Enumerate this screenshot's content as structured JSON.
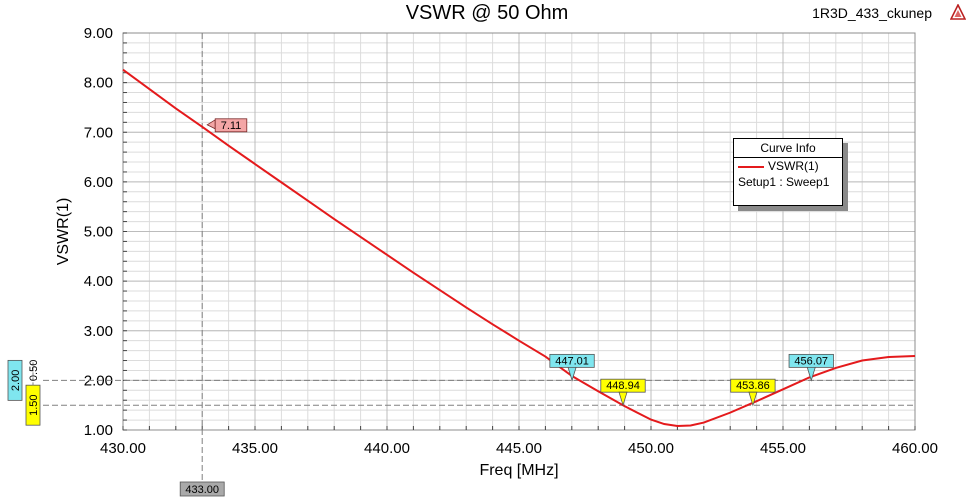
{
  "header": {
    "title": "VSWR @ 50 Ohm",
    "project": "1R3D_433_ckunep",
    "logo_icon": "ansys-logo-icon"
  },
  "legend": {
    "title": "Curve Info",
    "entry": "VSWR(1)",
    "sub": "Setup1 : Sweep1",
    "color": "#e41a1c"
  },
  "chart_data": {
    "type": "line",
    "title": "VSWR @ 50 Ohm",
    "xlabel": "Freq [MHz]",
    "ylabel": "VSWR(1)",
    "xlim": [
      430,
      460
    ],
    "ylim": [
      1,
      9
    ],
    "x_ticks": [
      "430.00",
      "435.00",
      "440.00",
      "445.00",
      "450.00",
      "455.00",
      "460.00"
    ],
    "y_ticks": [
      "1.00",
      "2.00",
      "3.00",
      "4.00",
      "5.00",
      "6.00",
      "7.00",
      "8.00",
      "9.00"
    ],
    "grid": true,
    "series": [
      {
        "name": "VSWR(1)",
        "color": "#e41a1c",
        "x": [
          430,
          431,
          432,
          433,
          434,
          435,
          436,
          437,
          438,
          439,
          440,
          441,
          442,
          443,
          444,
          445,
          446,
          447,
          448,
          449,
          450,
          450.5,
          451,
          451.5,
          452,
          453,
          454,
          455,
          456,
          457,
          458,
          459,
          460
        ],
        "y": [
          8.26,
          7.87,
          7.48,
          7.11,
          6.73,
          6.36,
          5.99,
          5.62,
          5.25,
          4.89,
          4.53,
          4.17,
          3.82,
          3.47,
          3.13,
          2.8,
          2.48,
          2.09,
          1.78,
          1.48,
          1.21,
          1.12,
          1.08,
          1.09,
          1.15,
          1.35,
          1.58,
          1.82,
          2.06,
          2.25,
          2.4,
          2.47,
          2.49
        ]
      }
    ],
    "markers": [
      {
        "label": "7.11",
        "x": 433.0,
        "y": 7.11,
        "color": "#f4a6a6"
      },
      {
        "label": "447.01",
        "x": 447.01,
        "y": 2.0,
        "color": "#7fe6ef"
      },
      {
        "label": "448.94",
        "x": 448.94,
        "y": 1.5,
        "color": "#ffff00"
      },
      {
        "label": "453.86",
        "x": 453.86,
        "y": 1.5,
        "color": "#ffff00"
      },
      {
        "label": "456.07",
        "x": 456.07,
        "y": 2.0,
        "color": "#7fe6ef"
      }
    ],
    "ref_lines": {
      "vertical": {
        "x": 433.0,
        "label": "433.00"
      },
      "horizontal": [
        {
          "y": 2.0,
          "label": "2.00",
          "color": "#7fe6ef"
        },
        {
          "y": 1.5,
          "label": "1.50",
          "color": "#ffff00"
        }
      ],
      "delta_label": "0.50"
    }
  }
}
